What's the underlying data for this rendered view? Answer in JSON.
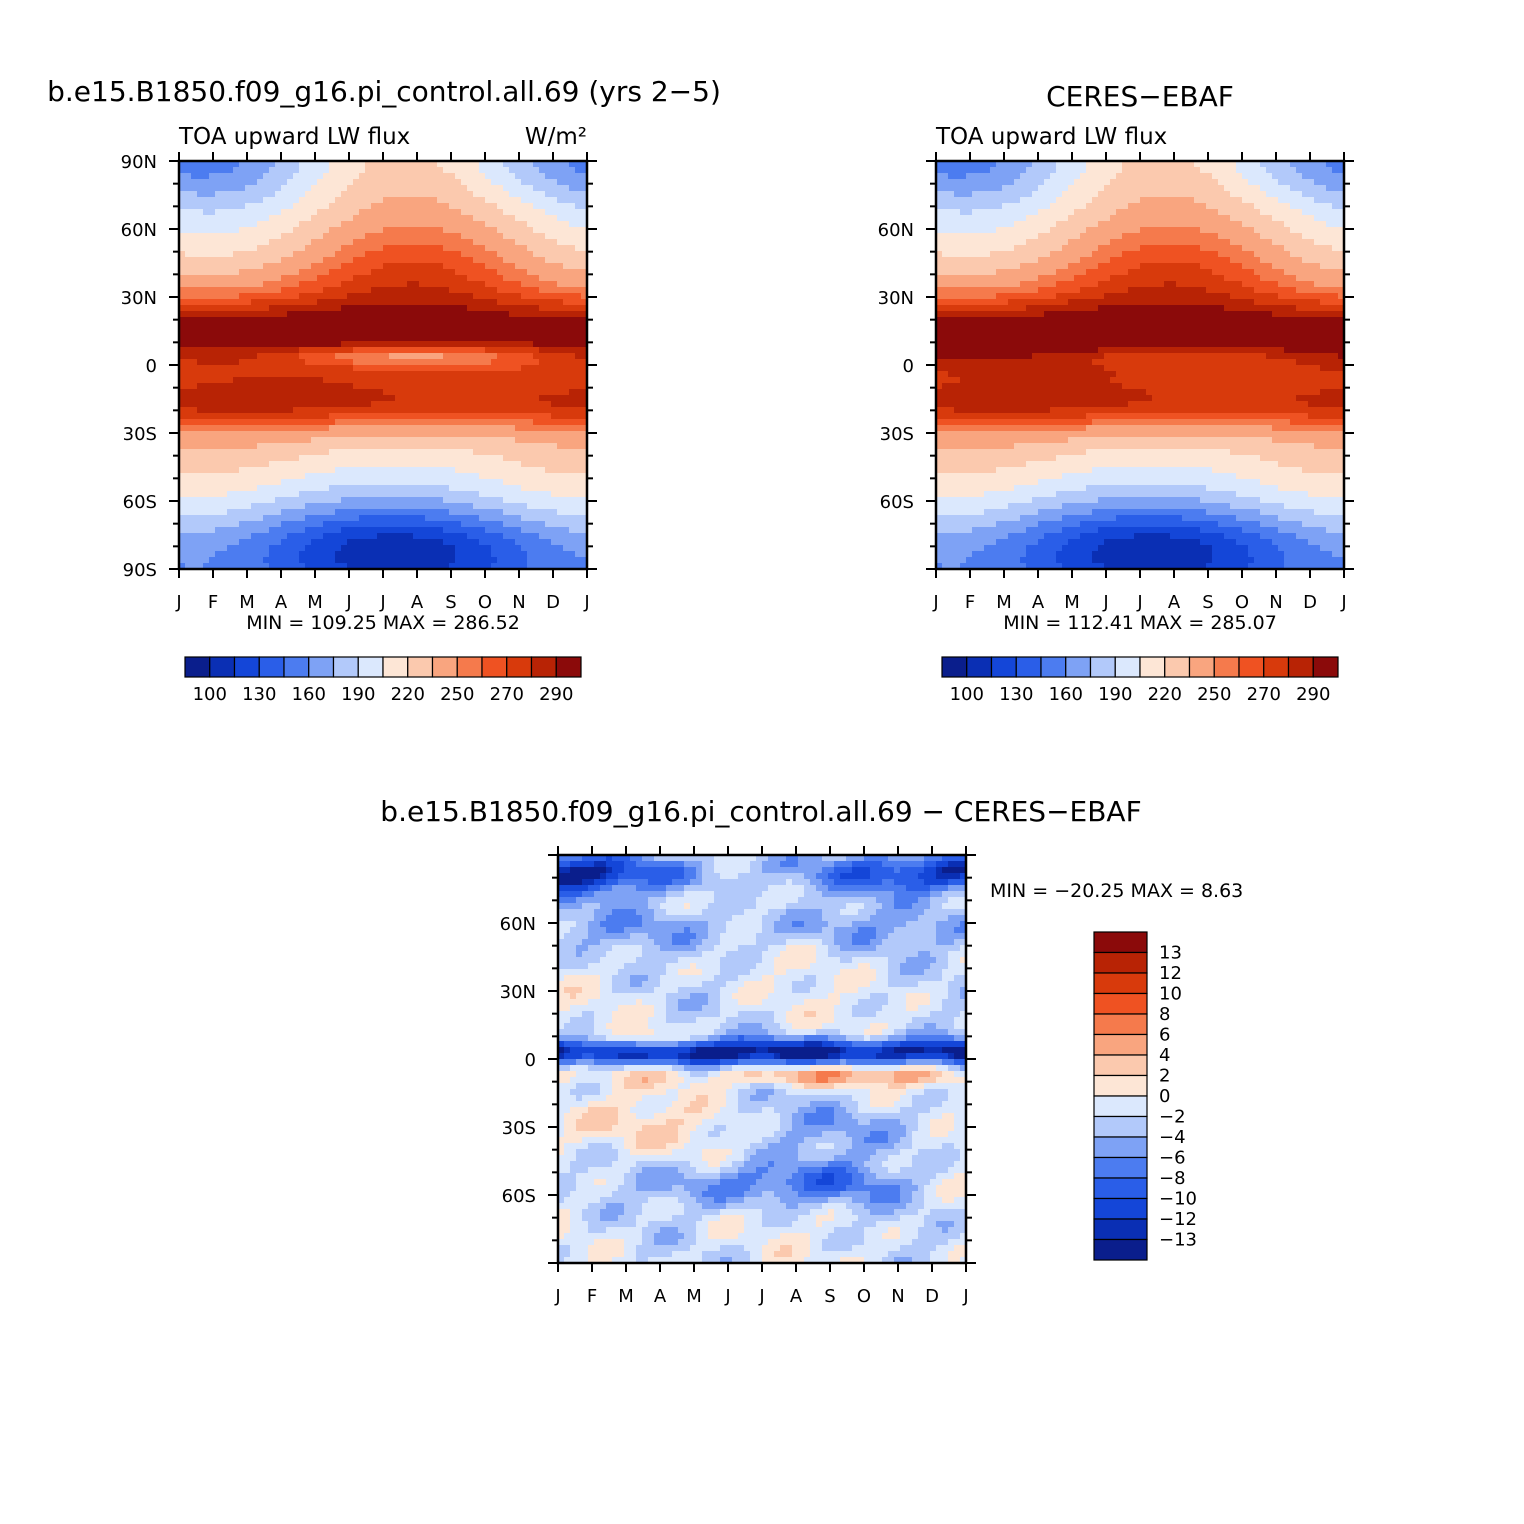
{
  "palette": [
    "#0a1e8c",
    "#0a2fb4",
    "#1446d8",
    "#2a5ee8",
    "#4c7cf0",
    "#7ea2f5",
    "#b2c9fa",
    "#dbe8fd",
    "#fde6d6",
    "#fbc9ae",
    "#f9a57f",
    "#f57a4c",
    "#ef5222",
    "#d83a0c",
    "#b82305",
    "#8b0a0a"
  ],
  "chart_data": [
    {
      "id": "model",
      "type": "heatmap",
      "title": "b.e15.B1850.f09_g16.pi_control.all.69 (yrs 2−5)",
      "left_label": "TOA upward LW flux",
      "right_label": "W/m²",
      "x_categories": [
        "J",
        "F",
        "M",
        "A",
        "M",
        "J",
        "J",
        "A",
        "S",
        "O",
        "N",
        "D",
        "J"
      ],
      "y_tick_labels": [
        "90N",
        "60N",
        "30N",
        "0",
        "30S",
        "60S",
        "90S"
      ],
      "y_tick_values": [
        90,
        60,
        30,
        0,
        -30,
        -60,
        -90
      ],
      "ylim": [
        -90,
        90
      ],
      "min": 109.25,
      "max": 286.52,
      "minmax_text": "MIN =  109.25  MAX =  286.52",
      "colorbar_labels": [
        "100",
        "130",
        "160",
        "190",
        "220",
        "250",
        "270",
        "290"
      ]
    },
    {
      "id": "obs",
      "type": "heatmap",
      "title": "CERES−EBAF",
      "left_label": "TOA upward LW flux",
      "right_label": "",
      "x_categories": [
        "J",
        "F",
        "M",
        "A",
        "M",
        "J",
        "J",
        "A",
        "S",
        "O",
        "N",
        "D",
        "J"
      ],
      "y_tick_labels": [
        "60N",
        "30N",
        "0",
        "30S",
        "60S"
      ],
      "y_tick_values": [
        60,
        30,
        0,
        -30,
        -60
      ],
      "ylim": [
        -90,
        90
      ],
      "min": 112.41,
      "max": 285.07,
      "minmax_text": "MIN =  112.41  MAX =  285.07",
      "colorbar_labels": [
        "100",
        "130",
        "160",
        "190",
        "220",
        "250",
        "270",
        "290"
      ]
    },
    {
      "id": "diff",
      "type": "heatmap",
      "title": "b.e15.B1850.f09_g16.pi_control.all.69 − CERES−EBAF",
      "x_categories": [
        "J",
        "F",
        "M",
        "A",
        "M",
        "J",
        "J",
        "A",
        "S",
        "O",
        "N",
        "D",
        "J"
      ],
      "y_tick_labels": [
        "60N",
        "30N",
        "0",
        "30S",
        "60S"
      ],
      "y_tick_values": [
        60,
        30,
        0,
        -30,
        -60
      ],
      "ylim": [
        -90,
        90
      ],
      "min": -20.25,
      "max": 8.63,
      "minmax_text": "MIN = −20.25 MAX =     8.63",
      "colorbar_labels": [
        "13",
        "12",
        "10",
        "8",
        "6",
        "4",
        "2",
        "0",
        "−2",
        "−4",
        "−6",
        "−8",
        "−10",
        "−12",
        "−13"
      ]
    }
  ]
}
